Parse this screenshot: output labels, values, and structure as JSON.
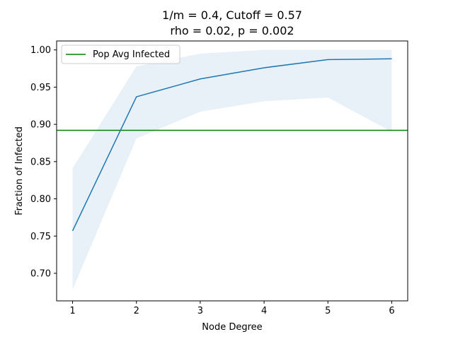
{
  "chart_data": {
    "type": "line",
    "title_line1": "1/m = 0.4, Cutoff = 0.57",
    "title_line2": "rho = 0.02, p = 0.002",
    "xlabel": "Node Degree",
    "ylabel": "Fraction of Infected",
    "xlim": [
      0.75,
      6.25
    ],
    "ylim": [
      0.663,
      1.012
    ],
    "x_ticks": [
      1,
      2,
      3,
      4,
      5,
      6
    ],
    "y_ticks": [
      0.7,
      0.75,
      0.8,
      0.85,
      0.9,
      0.95,
      1.0
    ],
    "y_tick_labels": [
      "0.70",
      "0.75",
      "0.80",
      "0.85",
      "0.90",
      "0.95",
      "1.00"
    ],
    "grid": false,
    "legend_placement": "top-left",
    "series": [
      {
        "name": "",
        "color": "#1f77b4",
        "x": [
          1,
          2,
          3,
          4,
          5,
          6
        ],
        "values": [
          0.757,
          0.937,
          0.961,
          0.976,
          0.987,
          0.988
        ]
      }
    ],
    "band": {
      "color": "#1f77b4",
      "opacity": 0.1,
      "x": [
        1,
        2,
        3,
        4,
        5,
        6
      ],
      "upper": [
        0.841,
        0.978,
        0.995,
        1.0,
        1.0,
        1.0
      ],
      "lower": [
        0.678,
        0.881,
        0.917,
        0.931,
        0.936,
        0.89
      ]
    },
    "hline": {
      "name": "Pop Avg Infected",
      "color": "#008000",
      "y": 0.892
    }
  }
}
